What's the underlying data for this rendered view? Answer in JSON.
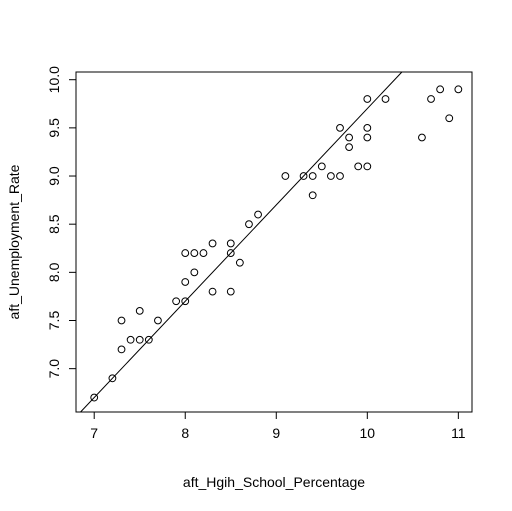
{
  "chart_data": {
    "type": "scatter",
    "title": "",
    "xlabel": "aft_Hgih_School_Percentage",
    "ylabel": "aft_Unemployment_Rate",
    "xlim": [
      6.8,
      11.15
    ],
    "ylim": [
      6.55,
      10.08
    ],
    "x_ticks": [
      7,
      8,
      9,
      10,
      11
    ],
    "x_tick_labels": [
      "7",
      "8",
      "9",
      "10",
      "11"
    ],
    "y_ticks": [
      7.0,
      7.5,
      8.0,
      8.5,
      9.0,
      9.5,
      10.0
    ],
    "y_tick_labels": [
      "7.0",
      "7.5",
      "8.0",
      "8.5",
      "9.0",
      "9.5",
      "10.0"
    ],
    "grid": false,
    "legend": "none",
    "marker": "open-circle",
    "points": [
      [
        7.0,
        6.7
      ],
      [
        7.2,
        6.9
      ],
      [
        7.3,
        7.2
      ],
      [
        7.3,
        7.5
      ],
      [
        7.4,
        7.3
      ],
      [
        7.5,
        7.3
      ],
      [
        7.5,
        7.6
      ],
      [
        7.6,
        7.3
      ],
      [
        7.7,
        7.5
      ],
      [
        7.9,
        7.7
      ],
      [
        8.0,
        7.7
      ],
      [
        8.0,
        7.9
      ],
      [
        8.0,
        8.2
      ],
      [
        8.1,
        8.0
      ],
      [
        8.1,
        8.2
      ],
      [
        8.2,
        8.2
      ],
      [
        8.3,
        7.8
      ],
      [
        8.3,
        8.3
      ],
      [
        8.5,
        7.8
      ],
      [
        8.5,
        8.2
      ],
      [
        8.5,
        8.3
      ],
      [
        8.6,
        8.1
      ],
      [
        8.7,
        8.5
      ],
      [
        8.8,
        8.6
      ],
      [
        9.1,
        9.0
      ],
      [
        9.3,
        9.0
      ],
      [
        9.4,
        8.8
      ],
      [
        9.4,
        9.0
      ],
      [
        9.5,
        9.1
      ],
      [
        9.6,
        9.0
      ],
      [
        9.7,
        9.0
      ],
      [
        9.7,
        9.5
      ],
      [
        9.8,
        9.3
      ],
      [
        9.8,
        9.4
      ],
      [
        9.9,
        9.1
      ],
      [
        10.0,
        9.1
      ],
      [
        10.0,
        9.4
      ],
      [
        10.0,
        9.5
      ],
      [
        10.0,
        9.8
      ],
      [
        10.2,
        9.8
      ],
      [
        10.6,
        9.4
      ],
      [
        10.7,
        9.8
      ],
      [
        10.8,
        9.9
      ],
      [
        10.9,
        9.6
      ],
      [
        11.0,
        9.9
      ]
    ],
    "reference_line": {
      "intercept": -0.3,
      "slope": 1.0
    }
  }
}
